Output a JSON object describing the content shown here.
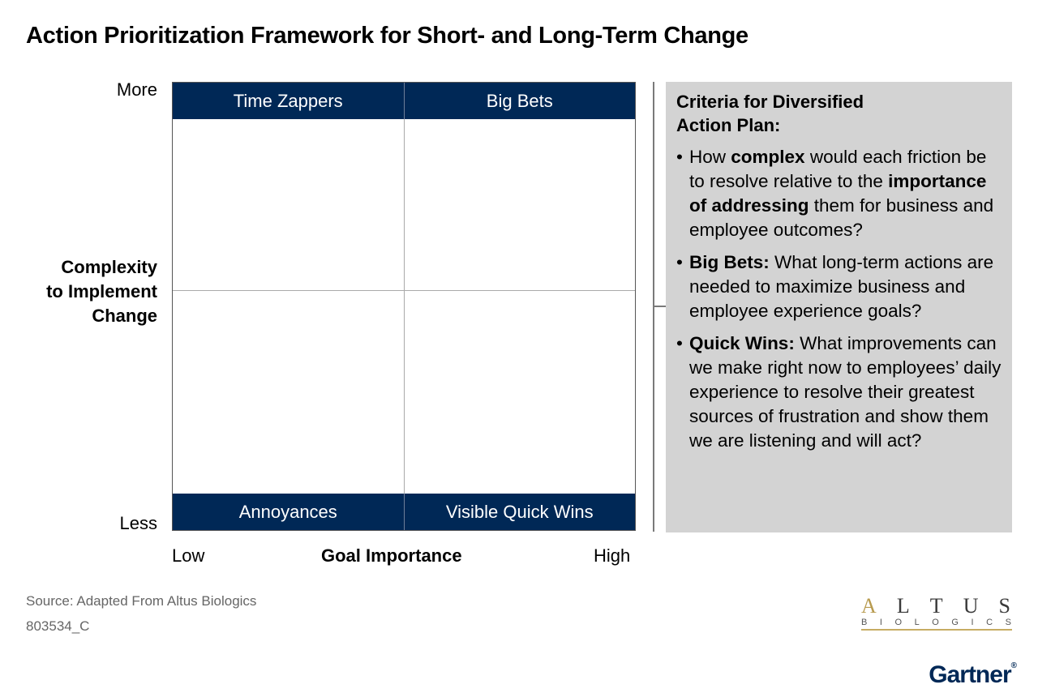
{
  "title": "Action Prioritization Framework for Short- and Long-Term Change",
  "y_axis": {
    "top_label": "More",
    "bottom_label": "Less",
    "title_lines": [
      "Complexity",
      "to Implement",
      "Change"
    ]
  },
  "x_axis": {
    "left_label": "Low",
    "right_label": "High",
    "title": "Goal Importance"
  },
  "quadrants": {
    "top_left": "Time Zappers",
    "top_right": "Big Bets",
    "bottom_left": "Annoyances",
    "bottom_right": "Visible Quick Wins"
  },
  "panel": {
    "title": "Criteria for Diversified Action Plan:",
    "bullet_glyph": "•",
    "bullets": [
      {
        "p1": "How ",
        "b1": "complex",
        "p2": " would each friction be to resolve relative to the ",
        "b2": "importance of addressing",
        "p3": " them for business and employee outcomes?"
      },
      {
        "b1": "Big Bets:",
        "p1": " What long-term actions are needed to maximize business and employee experience goals?"
      },
      {
        "b1": "Quick Wins:",
        "p1": " What improvements can we make right now to employees’ daily experience to resolve their greatest sources of frustration and show them we are listening and will act?"
      }
    ]
  },
  "footer": {
    "source": "Source: Adapted From Altus Biologics",
    "code": "803534_C"
  },
  "logos": {
    "altus_letters": [
      "A",
      "L",
      "T",
      "U",
      "S"
    ],
    "altus_sub_letters": [
      "B",
      "I",
      "O",
      "L",
      "O",
      "G",
      "I",
      "C",
      "S"
    ],
    "gartner": "Gartner",
    "gartner_reg": "®"
  },
  "colors": {
    "band": "#002856",
    "panel": "#d3d3d3",
    "accent_gold": "#b89b4f"
  }
}
